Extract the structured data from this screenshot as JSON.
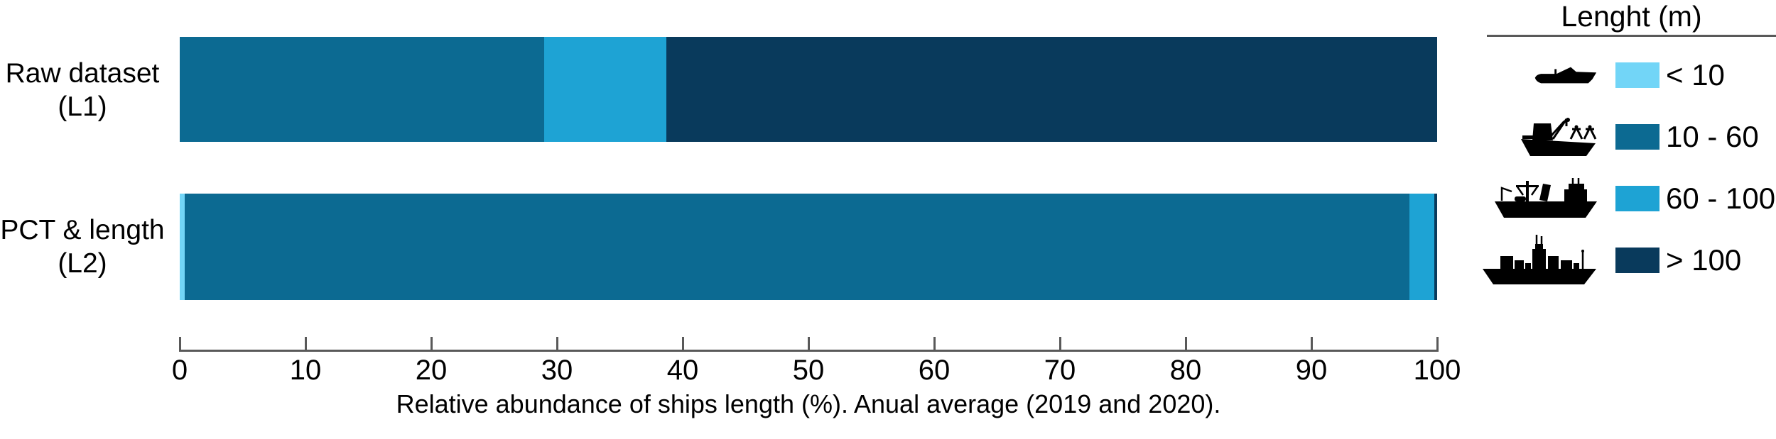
{
  "chart_data": {
    "type": "bar",
    "orientation": "horizontal_stacked",
    "xlabel": "Relative abundance of ships length (%). Anual average (2019 and 2020).",
    "xlim": [
      0,
      100
    ],
    "xticks": [
      0,
      10,
      20,
      30,
      40,
      50,
      60,
      70,
      80,
      90,
      100
    ],
    "grid": "off",
    "axis_color": "#595959",
    "text_color": "#000000",
    "bars": [
      {
        "label": [
          "Raw dataset",
          "(L1)"
        ],
        "segments": [
          0,
          29,
          9.7,
          61.3
        ]
      },
      {
        "label": [
          "PCT & length",
          "(L2)"
        ],
        "segments": [
          0.4,
          97.4,
          2.0,
          0.2
        ]
      }
    ],
    "categories": [
      {
        "key": "lt10",
        "label": "< 10",
        "color": "#72d5f7",
        "icon": "small-boat-icon"
      },
      {
        "key": "s10_60",
        "label": "10 - 60",
        "color": "#0c6a92",
        "icon": "trawler-icon"
      },
      {
        "key": "s60_100",
        "label": "60 - 100",
        "color": "#1ea3d4",
        "icon": "research-vessel-icon"
      },
      {
        "key": "gt100",
        "label": "> 100",
        "color": "#093a5c",
        "icon": "large-ship-icon"
      }
    ],
    "legend": {
      "title": "Lenght (m)",
      "position": "right"
    }
  }
}
